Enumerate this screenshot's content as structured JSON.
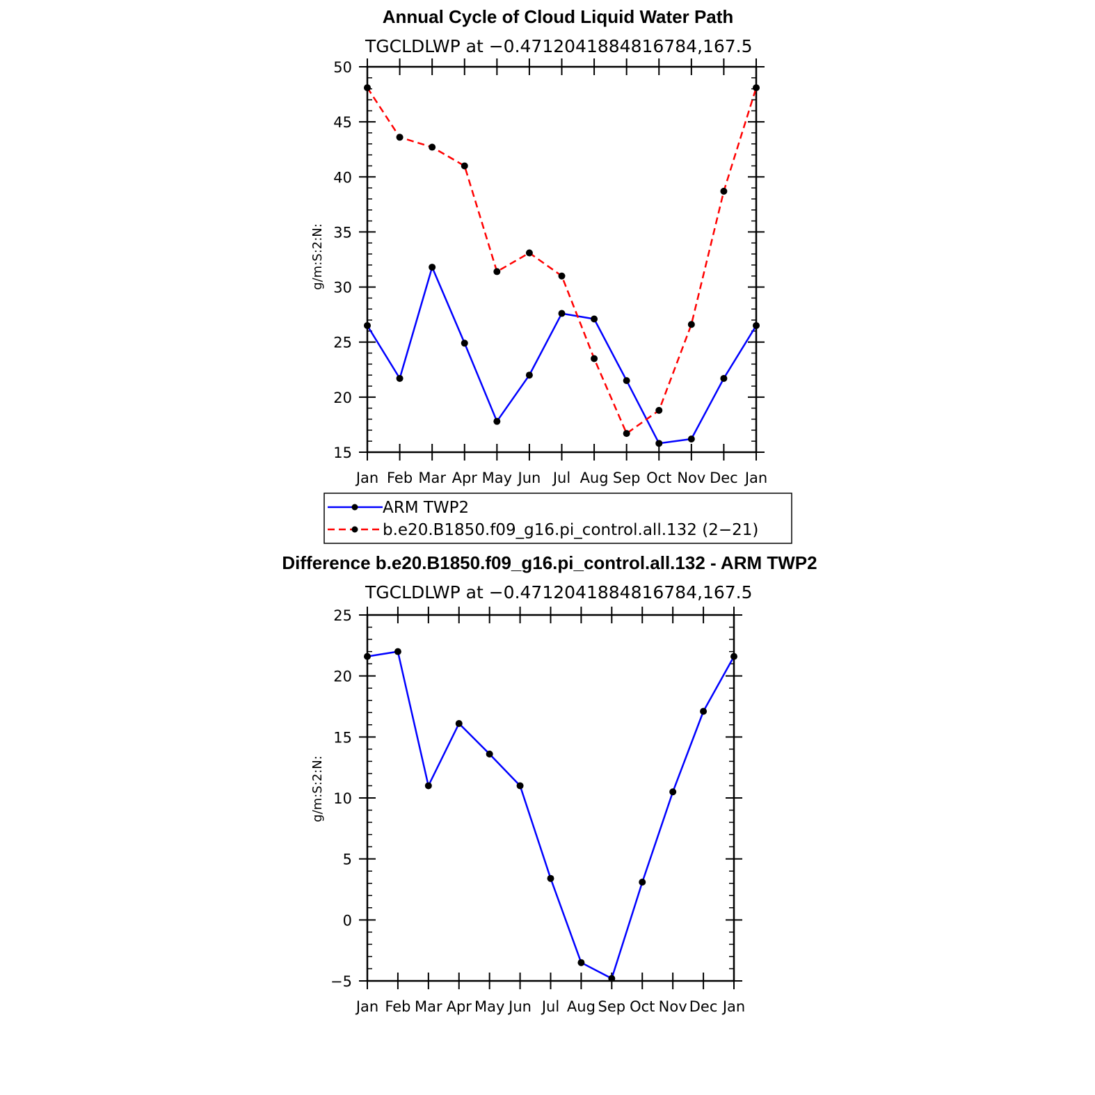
{
  "chart_data": [
    {
      "type": "line",
      "title": "Annual Cycle of Cloud Liquid Water Path",
      "subtitle": "TGCLDLWP at −0.4712041884816784,167.5",
      "ylabel": "g/m:S:2:N:",
      "xlabel": "",
      "categories": [
        "Jan",
        "Feb",
        "Mar",
        "Apr",
        "May",
        "Jun",
        "Jul",
        "Aug",
        "Sep",
        "Oct",
        "Nov",
        "Dec",
        "Jan"
      ],
      "ylim": [
        15,
        50
      ],
      "yticks": [
        "15",
        "20",
        "25",
        "30",
        "35",
        "40",
        "45",
        "50"
      ],
      "series": [
        {
          "name": "ARM TWP2",
          "color": "#0000ff",
          "dash": "solid",
          "values": [
            26.5,
            21.7,
            31.8,
            24.9,
            17.8,
            22.0,
            27.6,
            27.1,
            21.5,
            15.8,
            16.2,
            21.7,
            26.5
          ]
        },
        {
          "name": "b.e20.B1850.f09_g16.pi_control.all.132 (2−21)",
          "color": "#ff0000",
          "dash": "dashed",
          "values": [
            48.1,
            43.6,
            42.7,
            41.0,
            31.4,
            33.1,
            31.0,
            23.5,
            16.7,
            18.8,
            26.6,
            38.7,
            48.1
          ]
        }
      ],
      "legend": "below"
    },
    {
      "type": "line",
      "title": "Difference b.e20.B1850.f09_g16.pi_control.all.132 - ARM TWP2",
      "subtitle": "TGCLDLWP at −0.4712041884816784,167.5",
      "ylabel": "g/m:S:2:N:",
      "xlabel": "",
      "categories": [
        "Jan",
        "Feb",
        "Mar",
        "Apr",
        "May",
        "Jun",
        "Jul",
        "Aug",
        "Sep",
        "Oct",
        "Nov",
        "Dec",
        "Jan"
      ],
      "ylim": [
        -5,
        25
      ],
      "yticks": [
        "−5",
        "0",
        "5",
        "10",
        "15",
        "20",
        "25"
      ],
      "series": [
        {
          "name": "Difference",
          "color": "#0000ff",
          "dash": "solid",
          "values": [
            21.6,
            22.0,
            11.0,
            16.1,
            13.6,
            11.0,
            3.4,
            -3.5,
            -4.8,
            3.1,
            10.5,
            17.1,
            21.6
          ]
        }
      ]
    }
  ]
}
